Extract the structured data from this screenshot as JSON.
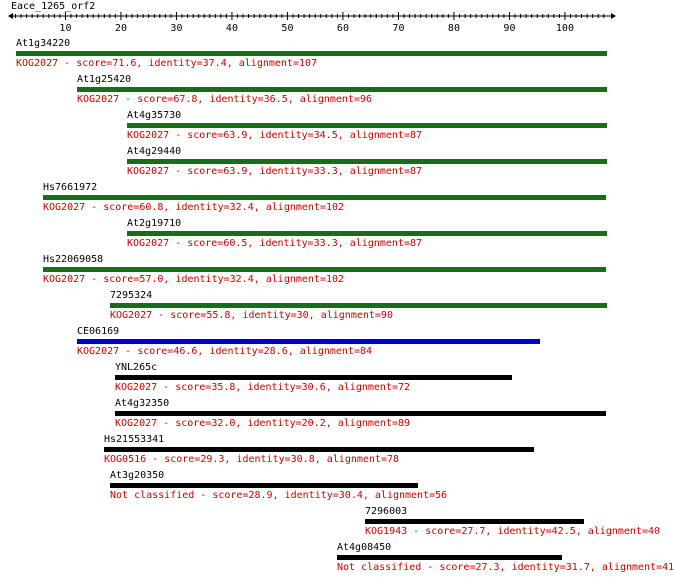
{
  "query": {
    "name": "Eace_1265_orf2",
    "ruler_ticks": [
      "10",
      "20",
      "30",
      "40",
      "50",
      "60",
      "70",
      "80",
      "90",
      "100"
    ]
  },
  "colors": {
    "green": "#1a6b1a",
    "blue": "#0000cc",
    "black": "#000000",
    "red": "#cc0000"
  },
  "hits": [
    {
      "name": "At1g34220",
      "label": "KOG2027 - score=71.6, identity=37.4, alignment=107",
      "color": "green",
      "start": 1,
      "end": 107
    },
    {
      "name": "At1g25420",
      "label": "KOG2027 - score=67.8, identity=36.5, alignment=96",
      "color": "green",
      "start": 12,
      "end": 107
    },
    {
      "name": "At4g35730",
      "label": "KOG2027 - score=63.9, identity=34.5, alignment=87",
      "color": "green",
      "start": 21,
      "end": 107
    },
    {
      "name": "At4g29440",
      "label": "KOG2027 - score=63.9, identity=33.3, alignment=87",
      "color": "green",
      "start": 21,
      "end": 107
    },
    {
      "name": "Hs7661972",
      "label": "KOG2027 - score=60.8, identity=32.4, alignment=102",
      "color": "green",
      "start": 6,
      "end": 107
    },
    {
      "name": "At2g19710",
      "label": "KOG2027 - score=60.5, identity=33.3, alignment=87",
      "color": "green",
      "start": 21,
      "end": 107
    },
    {
      "name": "Hs22069058",
      "label": "KOG2027 - score=57.0, identity=32.4, alignment=102",
      "color": "green",
      "start": 6,
      "end": 107
    },
    {
      "name": "7295324",
      "label": "KOG2027 - score=55.8, identity=30, alignment=90",
      "color": "green",
      "start": 18,
      "end": 107
    },
    {
      "name": "CE06169",
      "label": "KOG2027 - score=46.6, identity=28.6, alignment=84",
      "color": "blue",
      "start": 12,
      "end": 95
    },
    {
      "name": "YNL265c",
      "label": "KOG2027 - score=35.8, identity=30.6, alignment=72",
      "color": "black",
      "start": 19,
      "end": 90
    },
    {
      "name": "At4g32350",
      "label": "KOG2027 - score=32.0, identity=20.2, alignment=89",
      "color": "black",
      "start": 19,
      "end": 107
    },
    {
      "name": "Hs21553341",
      "label": "KOG0516 - score=29.3, identity=30.8, alignment=78",
      "color": "black",
      "start": 17,
      "end": 94
    },
    {
      "name": "At3g20350",
      "label": "Not classified - score=28.9, identity=30.4, alignment=56",
      "color": "black",
      "start": 18,
      "end": 73
    },
    {
      "name": "7296003",
      "label": "KOG1943 - score=27.7, identity=42.5, alignment=40",
      "color": "black",
      "start": 64,
      "end": 103
    },
    {
      "name": "At4g08450",
      "label": "Not classified - score=27.3, identity=31.7, alignment=41",
      "color": "black",
      "start": 59,
      "end": 99
    }
  ]
}
